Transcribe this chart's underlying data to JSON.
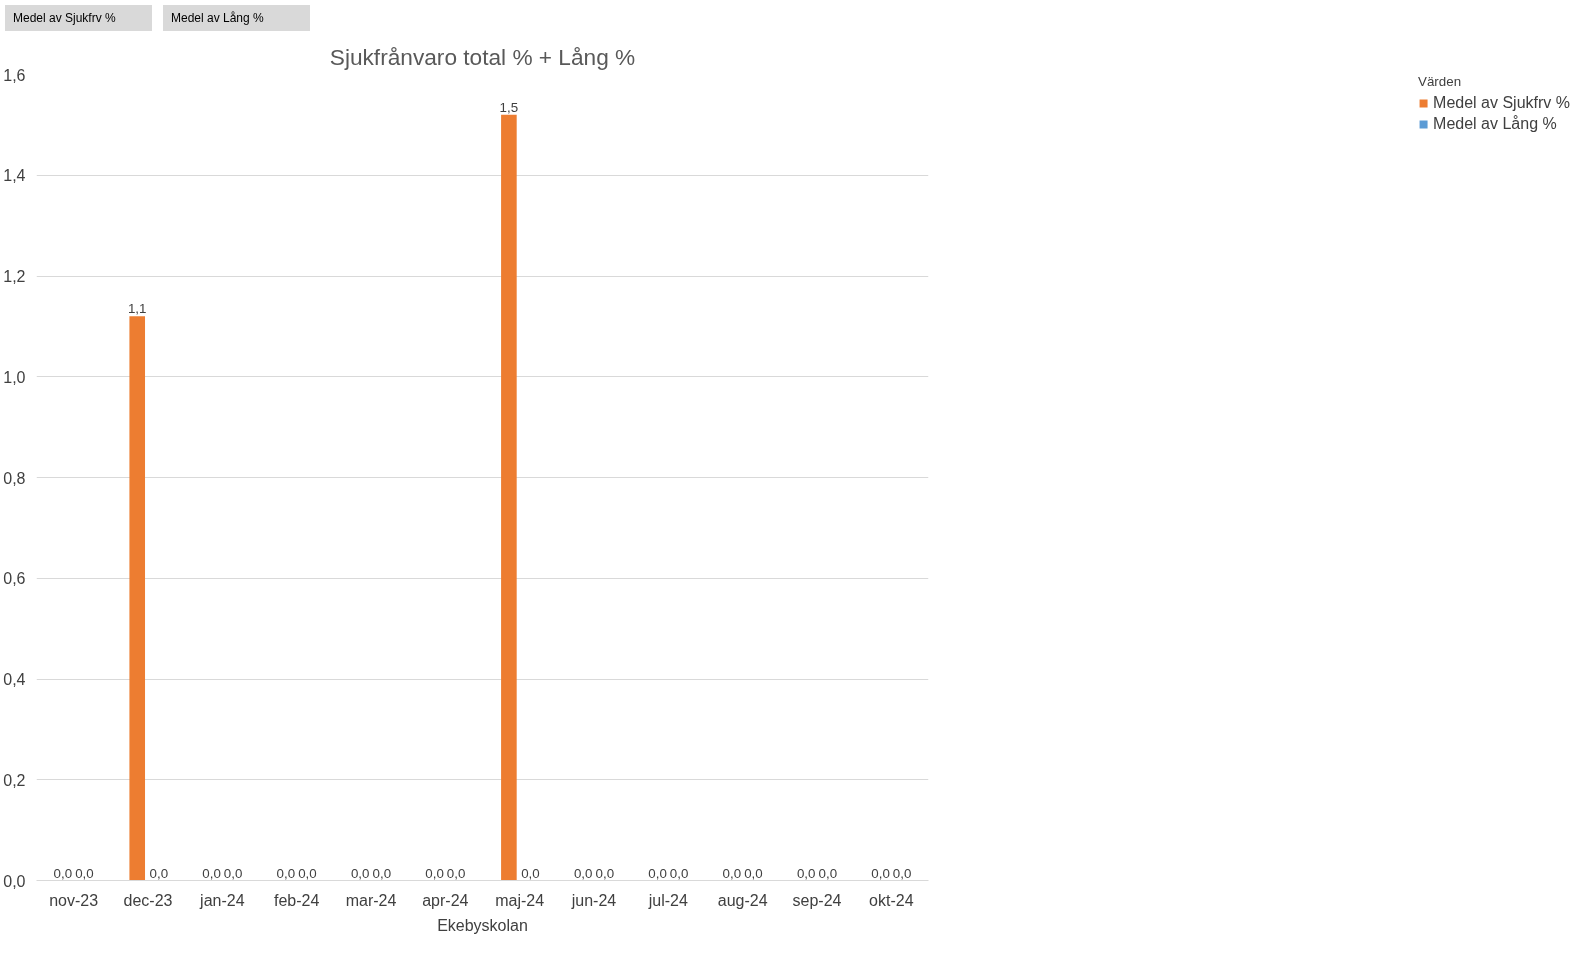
{
  "chart_data": {
    "type": "bar",
    "title": "Sjukfrånvaro total % + Lång %",
    "xlabel": "Ekebyskolan",
    "legend_title": "Värden",
    "categories": [
      "nov-23",
      "dec-23",
      "jan-24",
      "feb-24",
      "mar-24",
      "apr-24",
      "maj-24",
      "jun-24",
      "jul-24",
      "aug-24",
      "sep-24",
      "okt-24"
    ],
    "series": [
      {
        "name": "Medel av Sjukfrv %",
        "color": "#ed7d31",
        "values": [
          0,
          1.12,
          0,
          0,
          0,
          0,
          1.52,
          0,
          0,
          0,
          0,
          0
        ],
        "value_labels": [
          "0,0",
          "1,1",
          "0,0",
          "0,0",
          "0,0",
          "0,0",
          "1,5",
          "0,0",
          "0,0",
          "0,0",
          "0,0",
          "0,0"
        ]
      },
      {
        "name": "Medel av Lång %",
        "color": "#5b9bd5",
        "values": [
          0,
          0,
          0,
          0,
          0,
          0,
          0,
          0,
          0,
          0,
          0,
          0
        ],
        "value_labels": [
          "0,0",
          "0,0",
          "0,0",
          "0,0",
          "0,0",
          "0,0",
          "0,0",
          "0,0",
          "0,0",
          "0,0",
          "0,0",
          "0,0"
        ]
      }
    ],
    "ylim": [
      0,
      1.6
    ],
    "yticks": [
      {
        "value": 0,
        "label": "0,0"
      },
      {
        "value": 0.2,
        "label": "0,2"
      },
      {
        "value": 0.4,
        "label": "0,4"
      },
      {
        "value": 0.6,
        "label": "0,6"
      },
      {
        "value": 0.8,
        "label": "0,8"
      },
      {
        "value": 1.0,
        "label": "1,0"
      },
      {
        "value": 1.2,
        "label": "1,2"
      },
      {
        "value": 1.4,
        "label": "1,4"
      },
      {
        "value": 1.6,
        "label": "1,6"
      }
    ],
    "grid": "y",
    "legend": "right",
    "annotations": [
      "Medel av Sjukfrv %",
      "Medel av Lång %"
    ]
  }
}
